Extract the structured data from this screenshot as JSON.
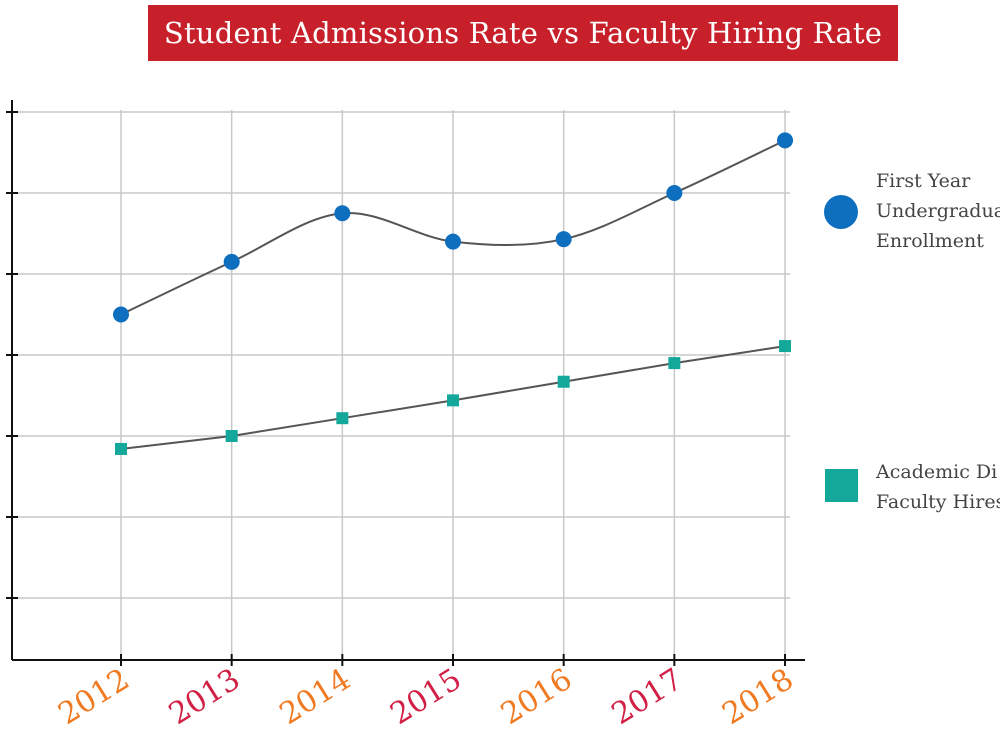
{
  "chart_data": {
    "type": "line",
    "title": "Student Admissions Rate vs Faculty Hiring Rate",
    "xlabel": "",
    "ylabel": "",
    "categories": [
      "2012",
      "2013",
      "2014",
      "2015",
      "2016",
      "2017",
      "2018"
    ],
    "category_colors": [
      "#f07a22",
      "#d11f45",
      "#f07a22",
      "#d11f45",
      "#f07a22",
      "#d11f45",
      "#f07a22"
    ],
    "ylim": [
      0.24,
      7
    ],
    "grid": true,
    "legend_position": "right",
    "series": [
      {
        "name": "First Year Undergradua Enrollment",
        "legend_lines": [
          "First Year",
          "Undergradua",
          "Enrollment"
        ],
        "marker": "circle",
        "color": "#0f6fbf",
        "smooth": true,
        "values": [
          4.5,
          5.15,
          5.75,
          5.4,
          5.43,
          6.0,
          6.65
        ]
      },
      {
        "name": "Academic Di Faculty Hires",
        "legend_lines": [
          "Academic Di",
          "Faculty Hires"
        ],
        "marker": "square",
        "color": "#14a89a",
        "smooth": false,
        "values": [
          2.84,
          3.0,
          3.22,
          3.44,
          3.67,
          3.9,
          4.11
        ]
      }
    ],
    "line_color": "#555555",
    "title_background": "#c8202a"
  }
}
